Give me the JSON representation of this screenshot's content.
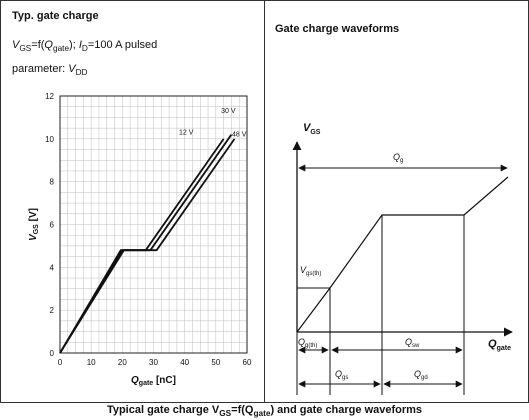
{
  "left_panel": {
    "title": "Typ. gate charge",
    "subtitle_vgs": "V",
    "subtitle_vgs_sub": "GS",
    "subtitle_f": "=f(",
    "subtitle_q": "Q",
    "subtitle_q_sub": "gate",
    "subtitle_close": "); ",
    "subtitle_i": "I",
    "subtitle_i_sub": "D",
    "subtitle_rest": "=100 A pulsed",
    "param_label": "parameter: ",
    "param_v": "V",
    "param_v_sub": "DD"
  },
  "right_panel": {
    "title": "Gate charge waveforms",
    "y_axis": "V",
    "y_axis_sub": "GS",
    "x_axis": "Q",
    "x_axis_sub": "gate",
    "labels": {
      "qg": "Q",
      "qg_sub": "g",
      "vgs_th": "V",
      "vgs_th_sub": "gs(th)",
      "qg_th": "Q",
      "qg_th_sub": "g(th)",
      "qsw": "Q",
      "qsw_sub": "sw",
      "qgs": "Q",
      "qgs_sub": "gs",
      "qgd": "Q",
      "qgd_sub": "gd"
    }
  },
  "caption": {
    "pre": "Typical gate charge V",
    "vgs_sub": "GS",
    "mid": "=f(Q",
    "q_sub": "gate",
    "post": ") and gate charge waveforms"
  },
  "chart_data": [
    {
      "type": "line",
      "title": "Typ. gate charge",
      "xlabel": "Q",
      "xlabel_sub": "gate",
      "xlabel_unit": " [nC]",
      "ylabel": "V",
      "ylabel_sub": "GS",
      "ylabel_unit": " [V]",
      "xlim": [
        0,
        60
      ],
      "ylim": [
        0,
        12
      ],
      "xticks": [
        0,
        10,
        20,
        30,
        40,
        50,
        60
      ],
      "yticks": [
        0,
        2,
        4,
        6,
        8,
        10,
        12
      ],
      "grid": true,
      "series": [
        {
          "name": "12 V",
          "x": [
            0,
            19.5,
            27.5,
            52.5
          ],
          "y": [
            0,
            4.8,
            4.8,
            10
          ]
        },
        {
          "name": "30 V",
          "x": [
            0,
            20,
            29,
            55
          ],
          "y": [
            0,
            4.8,
            4.8,
            10.2
          ]
        },
        {
          "name": "48 V",
          "x": [
            0,
            20.5,
            31,
            56
          ],
          "y": [
            0,
            4.8,
            4.8,
            10
          ]
        }
      ]
    },
    {
      "type": "line",
      "title": "Gate charge waveforms",
      "xlabel": "Q",
      "xlabel_sub": "gate",
      "ylabel": "V",
      "ylabel_sub": "GS",
      "series": [
        {
          "x": [
            0,
            0.2,
            0.5,
            0.9,
            1.2
          ],
          "y": [
            0,
            0.45,
            0.83,
            0.83,
            1.25
          ]
        }
      ]
    }
  ]
}
